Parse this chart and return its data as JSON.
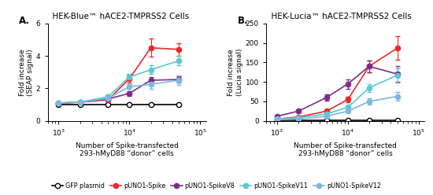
{
  "title_A": "HEK-Blue™ hACE2-TMPRSS2 Cells",
  "title_B": "HEK-Lucia™ hACE2-TMPRSS2 Cells",
  "label_A": "A.",
  "label_B": "B.",
  "ylabel_A": "Fold increase\n(SEAP signal)",
  "ylabel_B": "Fold increase\n(Lucia signal)",
  "xlabel": "Number of Spike-transfected\n293-hMyD88 “donor” cells",
  "x": [
    1000,
    2000,
    5000,
    10000,
    20000,
    50000
  ],
  "series_A": {
    "GFP plasmid": {
      "y": [
        1.0,
        1.0,
        1.0,
        1.0,
        1.0,
        1.0
      ],
      "yerr": [
        0.05,
        0.05,
        0.05,
        0.05,
        0.05,
        0.05
      ],
      "color": "#000000",
      "marker": "o",
      "filled": false
    },
    "pUNO1-Spike": {
      "y": [
        1.1,
        1.15,
        1.3,
        2.6,
        4.5,
        4.4
      ],
      "yerr": [
        0.05,
        0.05,
        0.15,
        0.25,
        0.55,
        0.4
      ],
      "color": "#e8292a",
      "marker": "o",
      "filled": true
    },
    "pUNO1-SpikeV8": {
      "y": [
        1.1,
        1.15,
        1.35,
        1.7,
        2.5,
        2.55
      ],
      "yerr": [
        0.05,
        0.05,
        0.1,
        0.15,
        0.2,
        0.2
      ],
      "color": "#7b2d8b",
      "marker": "o",
      "filled": true
    },
    "pUNO1-SpikeV11": {
      "y": [
        1.1,
        1.15,
        1.5,
        2.7,
        3.15,
        3.7
      ],
      "yerr": [
        0.05,
        0.05,
        0.15,
        0.2,
        0.25,
        0.3
      ],
      "color": "#5bc8d0",
      "marker": "o",
      "filled": true
    },
    "pUNO1-SpikeV12": {
      "y": [
        1.1,
        1.15,
        1.4,
        2.1,
        2.25,
        2.5
      ],
      "yerr": [
        0.05,
        0.05,
        0.1,
        0.15,
        0.3,
        0.3
      ],
      "color": "#7db8e0",
      "marker": "o",
      "filled": true
    }
  },
  "series_B": {
    "GFP plasmid": {
      "y": [
        2,
        2,
        2,
        2,
        2,
        2
      ],
      "yerr": [
        0.5,
        0.5,
        0.5,
        0.5,
        0.5,
        0.5
      ],
      "color": "#000000",
      "marker": "o",
      "filled": false
    },
    "pUNO1-Spike": {
      "y": [
        5,
        10,
        25,
        55,
        140,
        187
      ],
      "yerr": [
        1,
        2,
        3,
        8,
        15,
        30
      ],
      "color": "#e8292a",
      "marker": "o",
      "filled": true
    },
    "pUNO1-SpikeV8": {
      "y": [
        12,
        25,
        60,
        95,
        140,
        120
      ],
      "yerr": [
        2,
        4,
        8,
        12,
        15,
        20
      ],
      "color": "#7b2d8b",
      "marker": "o",
      "filled": true
    },
    "pUNO1-SpikeV11": {
      "y": [
        5,
        8,
        18,
        35,
        85,
        117
      ],
      "yerr": [
        1,
        2,
        3,
        5,
        10,
        18
      ],
      "color": "#5bc8d0",
      "marker": "o",
      "filled": true
    },
    "pUNO1-SpikeV12": {
      "y": [
        3,
        5,
        12,
        25,
        50,
        63
      ],
      "yerr": [
        0.5,
        1,
        2,
        4,
        8,
        12
      ],
      "color": "#7db8e0",
      "marker": "o",
      "filled": true
    }
  },
  "ylim_A": [
    0,
    6
  ],
  "ylim_B": [
    0,
    250
  ],
  "yticks_A": [
    0,
    2,
    4,
    6
  ],
  "yticks_B": [
    0,
    50,
    100,
    150,
    200,
    250
  ],
  "legend_labels": [
    "GFP plasmid",
    "pUNO1-Spike",
    "pUNO1-SpikeV8",
    "pUNO1-SpikeV11",
    "pUNO1-SpikeV12"
  ],
  "legend_colors": [
    "#000000",
    "#e8292a",
    "#7b2d8b",
    "#5bc8d0",
    "#7db8e0"
  ],
  "background_color": "#ffffff"
}
